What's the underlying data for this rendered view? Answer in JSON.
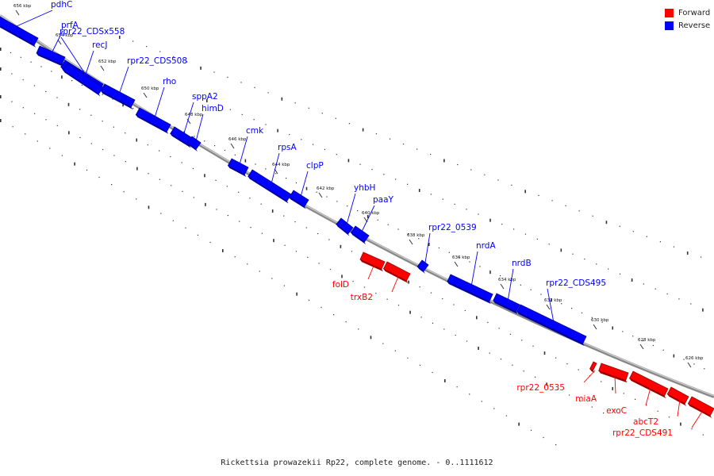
{
  "legend": {
    "forward_label": "Forward",
    "reverse_label": "Reverse",
    "forward_color": "#ff0000",
    "reverse_color": "#0000ff"
  },
  "caption": "Rickettsia prowazekii Rp22, complete genome. - 0..1111612",
  "ticks": [
    "656 kbp",
    "654 kbp",
    "652 kbp",
    "650 kbp",
    "648 kbp",
    "646 kbp",
    "644 kbp",
    "642 kbp",
    "640 kbp",
    "638 kbp",
    "636 kbp",
    "634 kbp",
    "632 kbp",
    "630 kbp",
    "628 kbp",
    "626 kbp"
  ],
  "genes": [
    {
      "name": "pdhC",
      "strand": "reverse"
    },
    {
      "name": "prfA",
      "strand": "reverse"
    },
    {
      "name": "rpr22_CDSx558",
      "strand": "reverse"
    },
    {
      "name": "recJ",
      "strand": "reverse"
    },
    {
      "name": "rpr22_CDS508",
      "strand": "reverse"
    },
    {
      "name": "rho",
      "strand": "reverse"
    },
    {
      "name": "sppA2",
      "strand": "reverse"
    },
    {
      "name": "himD",
      "strand": "reverse"
    },
    {
      "name": "cmk",
      "strand": "reverse"
    },
    {
      "name": "rpsA",
      "strand": "reverse"
    },
    {
      "name": "clpP",
      "strand": "reverse"
    },
    {
      "name": "yhbH",
      "strand": "reverse"
    },
    {
      "name": "paaY",
      "strand": "reverse"
    },
    {
      "name": "rpr22_0539",
      "strand": "reverse"
    },
    {
      "name": "nrdA",
      "strand": "reverse"
    },
    {
      "name": "nrdB",
      "strand": "reverse"
    },
    {
      "name": "rpr22_CDS495",
      "strand": "reverse"
    },
    {
      "name": "folD",
      "strand": "forward"
    },
    {
      "name": "trxB2",
      "strand": "forward"
    },
    {
      "name": "rpr22_0535",
      "strand": "forward"
    },
    {
      "name": "miaA",
      "strand": "forward"
    },
    {
      "name": "exoC",
      "strand": "forward"
    },
    {
      "name": "abcT2",
      "strand": "forward"
    },
    {
      "name": "rpr22_CDS491",
      "strand": "forward"
    }
  ]
}
